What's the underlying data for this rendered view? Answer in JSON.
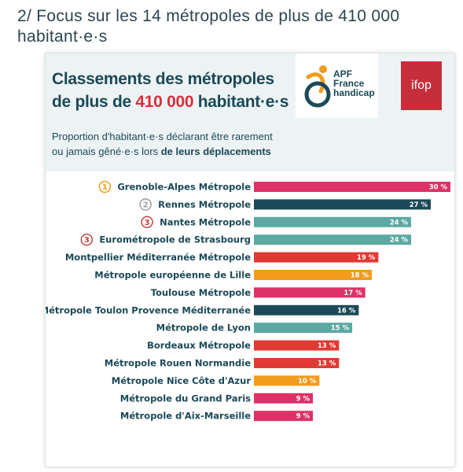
{
  "page": {
    "heading": "2/ Focus sur les 14 métropoles de plus de 410 000 habitant·e·s"
  },
  "card": {
    "title_line1": "Classements des métropoles",
    "title_line2_prefix": "de plus de ",
    "title_line2_highlight": "410 000",
    "title_line2_suffix": " habitant·e·s",
    "subtitle_line1": "Proportion d'habitant·e·s déclarant être rarement",
    "subtitle_line2_prefix": "ou jamais gêné·e·s lors ",
    "subtitle_line2_strong": "de leurs déplacements"
  },
  "logos": {
    "apf_line1": "APF",
    "apf_line2": "France",
    "apf_line3": "handicap",
    "ifop": "ifop"
  },
  "chart_data": {
    "type": "bar",
    "orientation": "horizontal",
    "unit": "%",
    "xlim": [
      0,
      30
    ],
    "grid": false,
    "categories": [
      "Grenoble-Alpes Métropole",
      "Rennes Métropole",
      "Nantes Métropole",
      "Eurométropole de Strasbourg",
      "Montpellier Méditerranée Métropole",
      "Métropole européenne de Lille",
      "Toulouse Métropole",
      "Métropole Toulon Provence Méditerranée",
      "Métropole de Lyon",
      "Bordeaux Métropole",
      "Métropole Rouen Normandie",
      "Métropole Nice Côte d'Azur",
      "Métropole du Grand Paris",
      "Métropole d'Aix-Marseille"
    ],
    "values": [
      30,
      27,
      24,
      24,
      19,
      18,
      17,
      16,
      15,
      13,
      13,
      10,
      9,
      9
    ],
    "value_labels": [
      "30 %",
      "27 %",
      "24 %",
      "24 %",
      "19 %",
      "18 %",
      "17 %",
      "16 %",
      "15 %",
      "13 %",
      "13 %",
      "10 %",
      "9 %",
      "9 %"
    ],
    "bar_colors": [
      "#de3168",
      "#1b4957",
      "#5ca9a3",
      "#5ca9a3",
      "#e03a34",
      "#f29b1d",
      "#de3168",
      "#1b4957",
      "#5ca9a3",
      "#e03a34",
      "#e03a34",
      "#f29b1d",
      "#de3168",
      "#de3168"
    ],
    "ranks": [
      {
        "index": 0,
        "label": "1",
        "color": "#f0a21c"
      },
      {
        "index": 1,
        "label": "2",
        "color": "#a0a0a0"
      },
      {
        "index": 2,
        "label": "3",
        "color": "#c0483f"
      },
      {
        "index": 3,
        "label": "3",
        "color": "#c0483f"
      }
    ]
  }
}
